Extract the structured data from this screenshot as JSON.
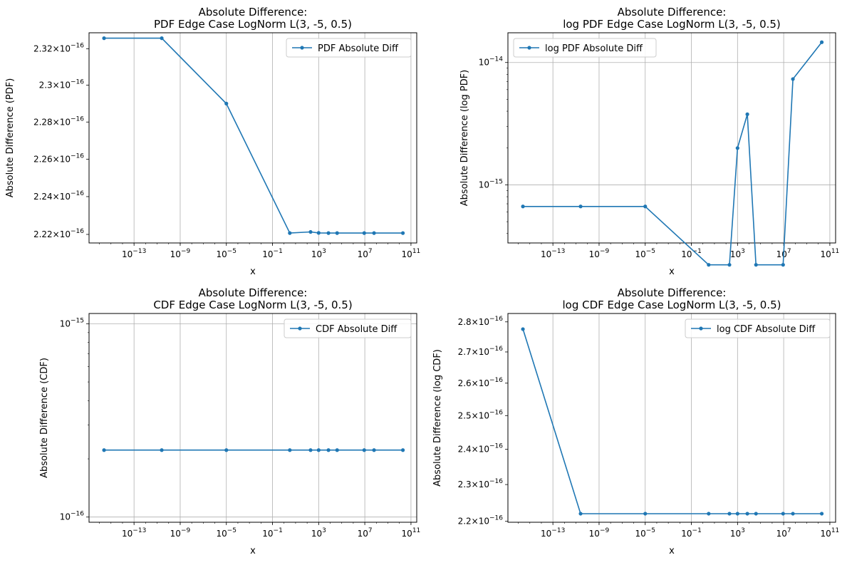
{
  "figure": {
    "background": "#ffffff",
    "line_color": "#1f77b4",
    "grid_color": "#b0b0b0"
  },
  "chart_data": [
    {
      "type": "line",
      "title_line1": "Absolute Difference:",
      "title_line2": "PDF Edge Case LogNorm L(3, -5, 0.5)",
      "xlabel": "x",
      "ylabel": "Absolute Difference (PDF)",
      "xscale": "log",
      "yscale": "log",
      "grid": "x",
      "legend_placement": "upper right",
      "x_ticks": [
        "10^-13",
        "10^-9",
        "10^-5",
        "10^-1",
        "10^3",
        "10^7",
        "10^11"
      ],
      "y_ticks": [
        {
          "mant": "2.22",
          "exp": "-16",
          "v": 2.22e-16
        },
        {
          "mant": "2.24",
          "exp": "-16",
          "v": 2.24e-16
        },
        {
          "mant": "2.26",
          "exp": "-16",
          "v": 2.26e-16
        },
        {
          "mant": "2.28",
          "exp": "-16",
          "v": 2.28e-16
        },
        {
          "mant": "2.3",
          "exp": "-16",
          "v": 2.3e-16
        },
        {
          "mant": "2.32",
          "exp": "-16",
          "v": 2.32e-16
        }
      ],
      "xlim_exp": [
        -16.9,
        11.5
      ],
      "ylim": [
        2.2155e-16,
        2.3288e-16
      ],
      "series": [
        {
          "name": "PDF Absolute Diff",
          "x_exp": [
            -15.6,
            -10.6,
            -5,
            0.5,
            2.3,
            3,
            3.85,
            4.6,
            6.95,
            7.8,
            10.3
          ],
          "values": [
            2.3258e-16,
            2.3258e-16,
            2.29e-16,
            2.2207e-16,
            2.2213e-16,
            2.2208e-16,
            2.2207e-16,
            2.2207e-16,
            2.2207e-16,
            2.2207e-16,
            2.2207e-16
          ]
        }
      ]
    },
    {
      "type": "line",
      "title_line1": "Absolute Difference:",
      "title_line2": "log PDF Edge Case LogNorm L(3, -5, 0.5)",
      "xlabel": "x",
      "ylabel": "Absolute Difference (log PDF)",
      "xscale": "log",
      "yscale": "log",
      "grid": "both",
      "legend_placement": "upper left",
      "x_ticks": [
        "10^-13",
        "10^-9",
        "10^-5",
        "10^-1",
        "10^3",
        "10^7",
        "10^11"
      ],
      "y_ticks": [
        {
          "mant": "",
          "exp": "-15",
          "v": 1e-15
        },
        {
          "mant": "",
          "exp": "-14",
          "v": 1e-14
        }
      ],
      "ylim": [
        3.35e-16,
        1.75e-14
      ],
      "xlim_exp": [
        -16.9,
        11.5
      ],
      "series": [
        {
          "name": "log PDF Absolute Diff",
          "x_exp": [
            -15.6,
            -10.6,
            -5,
            0.5,
            2.3,
            3,
            3.85,
            4.6,
            6.95,
            7.8,
            10.3
          ],
          "values": [
            6.66e-16,
            6.66e-16,
            6.66e-16,
            2.22e-16,
            2.22e-16,
            1.998e-15,
            3.775e-15,
            2.22e-16,
            2.22e-16,
            7.327e-15,
            1.465e-14
          ]
        }
      ]
    },
    {
      "type": "line",
      "title_line1": "Absolute Difference:",
      "title_line2": "CDF Edge Case LogNorm L(3, -5, 0.5)",
      "xlabel": "x",
      "ylabel": "Absolute Difference (CDF)",
      "xscale": "log",
      "yscale": "log",
      "grid": "both",
      "legend_placement": "upper right",
      "x_ticks": [
        "10^-13",
        "10^-9",
        "10^-5",
        "10^-1",
        "10^3",
        "10^7",
        "10^11"
      ],
      "y_ticks": [
        {
          "mant": "",
          "exp": "-16",
          "v": 1e-16
        },
        {
          "mant": "",
          "exp": "-15",
          "v": 1e-15
        }
      ],
      "ylim": [
        9.4e-17,
        1.13e-15
      ],
      "xlim_exp": [
        -16.9,
        11.5
      ],
      "series": [
        {
          "name": "CDF Absolute Diff",
          "x_exp": [
            -15.6,
            -10.6,
            -5,
            0.5,
            2.3,
            3,
            3.85,
            4.6,
            6.95,
            7.8,
            10.3
          ],
          "values": [
            2.22e-16,
            2.22e-16,
            2.22e-16,
            2.22e-16,
            2.22e-16,
            2.22e-16,
            2.22e-16,
            2.22e-16,
            2.22e-16,
            2.22e-16,
            2.22e-16
          ]
        }
      ]
    },
    {
      "type": "line",
      "title_line1": "Absolute Difference:",
      "title_line2": "log CDF Edge Case LogNorm L(3, -5, 0.5)",
      "xlabel": "x",
      "ylabel": "Absolute Difference (log CDF)",
      "xscale": "log",
      "yscale": "log",
      "grid": "x",
      "legend_placement": "upper right",
      "x_ticks": [
        "10^-13",
        "10^-9",
        "10^-5",
        "10^-1",
        "10^3",
        "10^7",
        "10^11"
      ],
      "y_ticks": [
        {
          "mant": "2.2",
          "exp": "-16",
          "v": 2.2e-16
        },
        {
          "mant": "2.3",
          "exp": "-16",
          "v": 2.3e-16
        },
        {
          "mant": "2.4",
          "exp": "-16",
          "v": 2.4e-16
        },
        {
          "mant": "2.5",
          "exp": "-16",
          "v": 2.5e-16
        },
        {
          "mant": "2.6",
          "exp": "-16",
          "v": 2.6e-16
        },
        {
          "mant": "2.7",
          "exp": "-16",
          "v": 2.7e-16
        },
        {
          "mant": "2.8",
          "exp": "-16",
          "v": 2.8e-16
        }
      ],
      "ylim": [
        2.1975e-16,
        2.8285e-16
      ],
      "xlim_exp": [
        -16.9,
        11.5
      ],
      "series": [
        {
          "name": "log CDF Absolute Diff",
          "x_exp": [
            -15.6,
            -10.6,
            -5,
            0.5,
            2.3,
            3,
            3.85,
            4.6,
            6.95,
            7.8,
            10.3
          ],
          "values": [
            2.7756e-16,
            2.2204e-16,
            2.2204e-16,
            2.2204e-16,
            2.2204e-16,
            2.2204e-16,
            2.2204e-16,
            2.2204e-16,
            2.2204e-16,
            2.2204e-16,
            2.2204e-16
          ]
        }
      ]
    }
  ]
}
